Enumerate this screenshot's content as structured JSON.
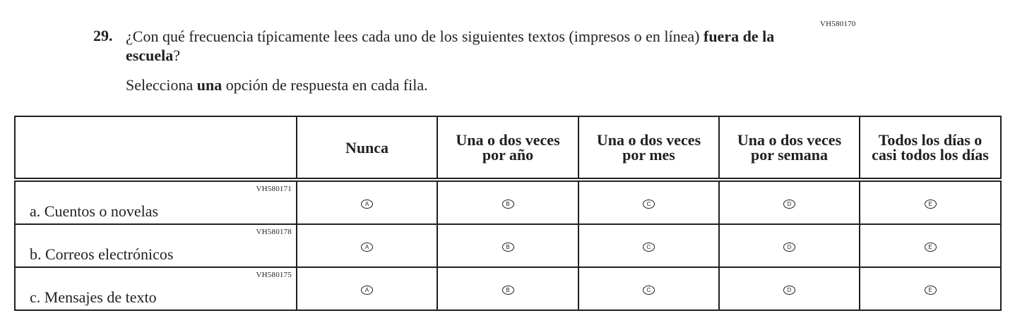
{
  "question": {
    "number": "29.",
    "code": "VH580170",
    "text_before": "¿Con qué frecuencia típicamente lees cada uno de los siguientes textos (impresos o en línea) ",
    "text_bold": "fuera de la escuela",
    "text_after": "?",
    "instruction_before": "Selecciona ",
    "instruction_bold": "una",
    "instruction_after": " opción de respuesta en cada fila."
  },
  "columns": [
    "Nunca",
    "Una o dos veces por año",
    "Una o dos veces por mes",
    "Una o dos veces por semana",
    "Todos los días o casi todos los días"
  ],
  "options": [
    "A",
    "B",
    "C",
    "D",
    "E"
  ],
  "rows": [
    {
      "label": "a.  Cuentos o novelas",
      "code": "VH580171"
    },
    {
      "label": "b.  Correos electrónicos",
      "code": "VH580178"
    },
    {
      "label": "c.  Mensajes de texto",
      "code": "VH580175"
    }
  ]
}
